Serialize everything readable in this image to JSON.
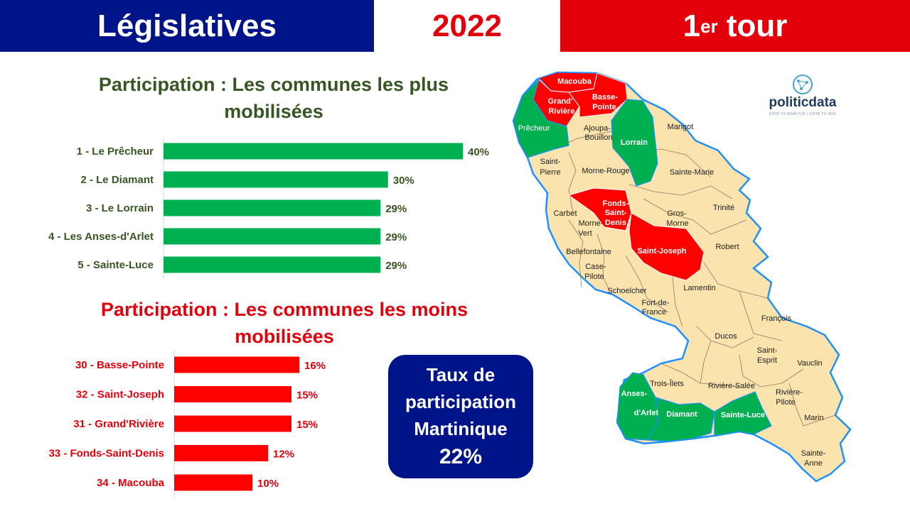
{
  "header": {
    "left": "Législatives",
    "middle": "2022",
    "right_main": "1",
    "right_sup": "er",
    "right_tail": " tour"
  },
  "colors": {
    "blue": "#001489",
    "red": "#e3000b",
    "green": "#00b050",
    "dark_green": "#375623",
    "map_fill": "#fae3ad",
    "map_outline": "#1e90ff"
  },
  "chart_data": [
    {
      "type": "bar",
      "orientation": "horizontal",
      "title": "Participation : Les communes les plus mobilisées",
      "categories": [
        "1 - Le Prêcheur",
        "2 - Le Diamant",
        "3 - Le Lorrain",
        "4 - Les Anses-d'Arlet",
        "5 - Sainte-Luce"
      ],
      "values": [
        40,
        30,
        29,
        29,
        29
      ],
      "value_labels": [
        "40%",
        "30%",
        "29%",
        "29%",
        "29%"
      ],
      "color": "#00b050"
    },
    {
      "type": "bar",
      "orientation": "horizontal",
      "title": "Participation : Les communes les moins mobilisées",
      "categories": [
        "30 - Basse-Pointe",
        "32 - Saint-Joseph",
        "31 - Grand'Rivière",
        "33 - Fonds-Saint-Denis",
        "34 - Macouba"
      ],
      "values": [
        16,
        15,
        15,
        12,
        10
      ],
      "value_labels": [
        "16%",
        "15%",
        "15%",
        "12%",
        "10%"
      ],
      "color": "#ff0000"
    }
  ],
  "kpi": {
    "line1": "Taux de",
    "line2": "participation",
    "line3": "Martinique",
    "value": "22%"
  },
  "logo": {
    "name": "politicdata",
    "tagline": "DATA TO ANALYZE | DATA TO WIN"
  },
  "map": {
    "labels": {
      "macouba": "Macouba",
      "grand_riviere_1": "Grand'",
      "grand_riviere_2": "Rivière",
      "basse_pointe_1": "Basse-",
      "basse_pointe_2": "Pointe",
      "precheur": "Prêcheur",
      "ajoupa_1": "Ajoupa-",
      "ajoupa_2": "Bouillon",
      "lorrain": "Lorrain",
      "marigot": "Marigot",
      "saint_pierre_1": "Saint-",
      "saint_pierre_2": "Pierre",
      "morne_rouge": "Morne-Rouge",
      "sainte_marie": "Sainte-Marie",
      "fonds_1": "Fonds-",
      "fonds_2": "Saint-",
      "fonds_3": "Denis",
      "carbet": "Carbet",
      "morne_vert_1": "Morne-",
      "morne_vert_2": "Vert",
      "gros_morne_1": "Gros-",
      "gros_morne_2": "Morne",
      "trinite": "Trinité",
      "saint_joseph": "Saint-Joseph",
      "robert": "Robert",
      "bellefontaine": "Bellefontaine",
      "case_pilote_1": "Case-",
      "case_pilote_2": "Pilote",
      "schoelcher": "Schoelcher",
      "lamentin": "Lamentin",
      "fdf_1": "Fort-de-",
      "fdf_2": "France",
      "francois": "François",
      "ducos": "Ducos",
      "saint_esprit_1": "Saint-",
      "saint_esprit_2": "Esprit",
      "vauclin": "Vauclin",
      "trois_ilets": "Trois-Îlets",
      "riviere_salee": "Rivière-Salée",
      "riviere_pilote_1": "Rivière-",
      "riviere_pilote_2": "Pilote",
      "anses_1": "Anses-",
      "anses_2": "d'Arlet",
      "diamant": "Diamant",
      "sainte_luce": "Sainte-Luce",
      "marin": "Marin",
      "sainte_anne_1": "Sainte-",
      "sainte_anne_2": "Anne"
    }
  }
}
